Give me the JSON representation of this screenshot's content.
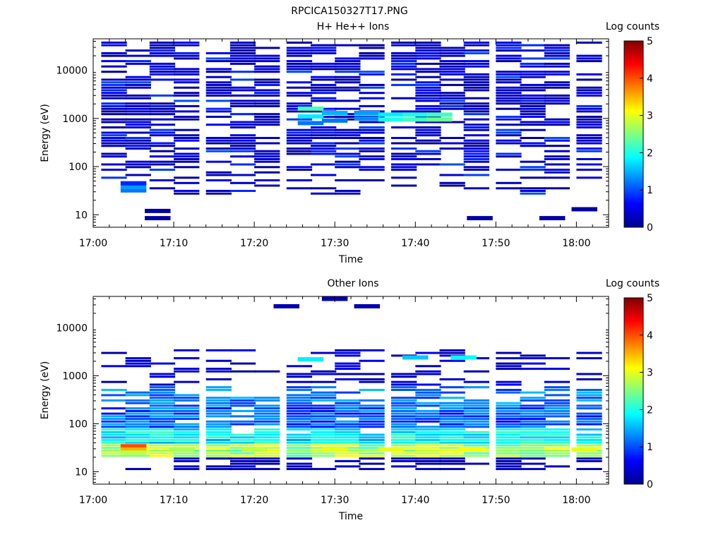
{
  "figure": {
    "filename": "RPCICA150327T17.PNG",
    "xlabel": "Time",
    "ylabel": "Energy (eV)",
    "colorbar_label": "Log counts",
    "x_ticks": [
      "17:00",
      "17:10",
      "17:20",
      "17:30",
      "17:40",
      "17:50",
      "18:00"
    ],
    "y_ticks": [
      "10",
      "100",
      "1000",
      "10000"
    ],
    "colorbar_ticks": [
      "0",
      "1",
      "2",
      "3",
      "4",
      "5"
    ],
    "colormap": [
      "#00008f",
      "#0000ff",
      "#0080ff",
      "#00ffff",
      "#80ff80",
      "#ffff00",
      "#ff8000",
      "#ff0000",
      "#800000"
    ]
  },
  "chart_data": [
    {
      "type": "heatmap",
      "title": "H+ He++ Ions",
      "xlabel": "Time",
      "ylabel": "Energy (eV)",
      "xlim": [
        "17:00",
        "18:04"
      ],
      "ylim": [
        5.5,
        45000
      ],
      "yscale": "log",
      "colorbar": {
        "label": "Log counts",
        "range": [
          0,
          5
        ]
      },
      "time_bins": [
        "17:01",
        "17:04",
        "17:07",
        "17:10",
        "17:14",
        "17:17",
        "17:20",
        "17:24",
        "17:27",
        "17:30",
        "17:33",
        "17:37",
        "17:40",
        "17:43",
        "17:46",
        "17:50",
        "17:53",
        "17:56",
        "18:00"
      ],
      "cells": [
        {
          "t": "17:05",
          "e": 32,
          "v": 1.2
        },
        {
          "t": "17:05",
          "e": 38,
          "v": 1.4
        },
        {
          "t": "17:05",
          "e": 45,
          "v": 0.8
        },
        {
          "t": "17:08",
          "e": 12,
          "v": 0.1
        },
        {
          "t": "17:08",
          "e": 8.5,
          "v": 0.1
        },
        {
          "t": "17:27",
          "e": 1600,
          "v": 2.2
        },
        {
          "t": "17:27",
          "e": 1100,
          "v": 1.8
        },
        {
          "t": "17:27",
          "e": 800,
          "v": 1.2
        },
        {
          "t": "17:30",
          "e": 1300,
          "v": 1.5
        },
        {
          "t": "17:30",
          "e": 900,
          "v": 1.2
        },
        {
          "t": "17:34",
          "e": 1300,
          "v": 1.4
        },
        {
          "t": "17:34",
          "e": 1000,
          "v": 1.3
        },
        {
          "t": "17:37",
          "e": 1200,
          "v": 1.8
        },
        {
          "t": "17:37",
          "e": 950,
          "v": 2.0
        },
        {
          "t": "17:40",
          "e": 1200,
          "v": 2.0
        },
        {
          "t": "17:40",
          "e": 950,
          "v": 2.2
        },
        {
          "t": "17:43",
          "e": 1200,
          "v": 2.2
        },
        {
          "t": "17:43",
          "e": 950,
          "v": 2.4
        },
        {
          "t": "17:48",
          "e": 8.5,
          "v": 0.1
        },
        {
          "t": "17:57",
          "e": 8.5,
          "v": 0.1
        },
        {
          "t": "18:01",
          "e": 13,
          "v": 0.1
        }
      ]
    },
    {
      "type": "heatmap",
      "title": "Other Ions",
      "xlabel": "Time",
      "ylabel": "Energy (eV)",
      "xlim": [
        "17:00",
        "18:04"
      ],
      "ylim": [
        5.5,
        45000
      ],
      "yscale": "log",
      "colorbar": {
        "label": "Log counts",
        "range": [
          0,
          5
        ]
      },
      "time_bins": [
        "17:01",
        "17:04",
        "17:07",
        "17:10",
        "17:14",
        "17:17",
        "17:20",
        "17:24",
        "17:27",
        "17:30",
        "17:33",
        "17:37",
        "17:40",
        "17:43",
        "17:46",
        "17:50",
        "17:53",
        "17:56",
        "18:00"
      ],
      "cells": [
        {
          "t": "17:05",
          "e": 34,
          "v": 4.0
        },
        {
          "t": "17:05",
          "e": 29,
          "v": 3.5
        },
        {
          "t": "17:05",
          "e": 25,
          "v": 2.8
        },
        {
          "t": "17:11",
          "e": 29,
          "v": 2.7
        },
        {
          "t": "17:20",
          "e": 29,
          "v": 2.8
        },
        {
          "t": "17:30",
          "e": 29,
          "v": 3.0
        },
        {
          "t": "17:37",
          "e": 29,
          "v": 3.0
        },
        {
          "t": "17:47",
          "e": 29,
          "v": 3.1
        },
        {
          "t": "18:01",
          "e": 29,
          "v": 3.0
        },
        {
          "t": "17:27",
          "e": 2200,
          "v": 1.8
        },
        {
          "t": "17:40",
          "e": 2400,
          "v": 1.6
        },
        {
          "t": "17:46",
          "e": 2400,
          "v": 1.9
        },
        {
          "t": "17:34",
          "e": 28000,
          "v": 0.2
        },
        {
          "t": "17:24",
          "e": 28000,
          "v": 0.2
        },
        {
          "t": "17:30",
          "e": 40000,
          "v": 0.2
        }
      ]
    }
  ]
}
